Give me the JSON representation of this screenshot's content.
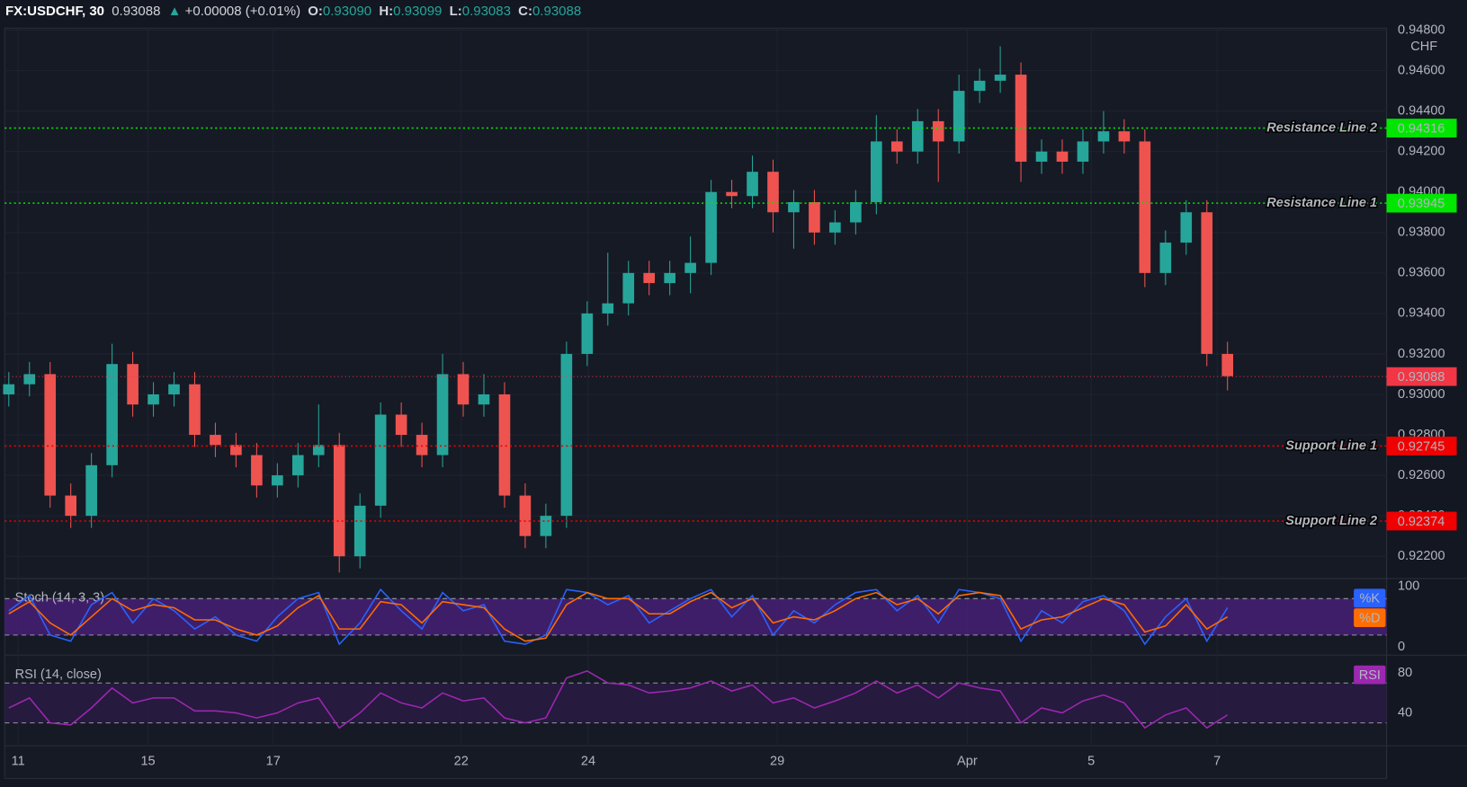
{
  "header": {
    "symbol": "FX:USDCHF, 30",
    "change": "+0.00008 (+0.01%)",
    "open_label": "O:",
    "open": "0.93090",
    "high_label": "H:",
    "high": "0.93099",
    "low_label": "L:",
    "low": "0.93083",
    "close_label": "C:",
    "close": "0.93088"
  },
  "chart_data": [
    {
      "type": "candlestick",
      "currency": "CHF",
      "open": [
        0.93,
        0.9305,
        0.931,
        0.925,
        0.924,
        0.9265,
        0.9315,
        0.9295,
        0.93,
        0.9305,
        0.928,
        0.9275,
        0.927,
        0.9255,
        0.926,
        0.927,
        0.9275,
        0.922,
        0.9245,
        0.929,
        0.928,
        0.927,
        0.931,
        0.9295,
        0.93,
        0.925,
        0.923,
        0.924,
        0.932,
        0.934,
        0.9345,
        0.936,
        0.9355,
        0.936,
        0.9365,
        0.94,
        0.9398,
        0.941,
        0.939,
        0.9395,
        0.938,
        0.9385,
        0.9395,
        0.9425,
        0.942,
        0.9435,
        0.9425,
        0.945,
        0.9455,
        0.9458,
        0.9415,
        0.942,
        0.9415,
        0.9425,
        0.943,
        0.9425,
        0.936,
        0.9375,
        0.939,
        0.932
      ],
      "high": [
        0.9311,
        0.9316,
        0.9316,
        0.9256,
        0.9271,
        0.9325,
        0.9321,
        0.9306,
        0.9311,
        0.9311,
        0.9286,
        0.9281,
        0.9276,
        0.9266,
        0.9276,
        0.9295,
        0.9281,
        0.9251,
        0.9296,
        0.9296,
        0.9286,
        0.932,
        0.9316,
        0.931,
        0.9306,
        0.9256,
        0.9246,
        0.9326,
        0.9346,
        0.937,
        0.9366,
        0.9366,
        0.9366,
        0.9378,
        0.9406,
        0.9406,
        0.9418,
        0.9416,
        0.9401,
        0.9401,
        0.9391,
        0.9401,
        0.9438,
        0.9431,
        0.9441,
        0.9441,
        0.9458,
        0.9461,
        0.9472,
        0.9464,
        0.9426,
        0.9426,
        0.9431,
        0.944,
        0.9436,
        0.9431,
        0.9381,
        0.9396,
        0.9396,
        0.9326
      ],
      "low": [
        0.9294,
        0.9299,
        0.9244,
        0.9234,
        0.9234,
        0.9259,
        0.9289,
        0.9289,
        0.9294,
        0.9274,
        0.9269,
        0.9264,
        0.9249,
        0.9249,
        0.9254,
        0.9264,
        0.9212,
        0.9214,
        0.9239,
        0.9274,
        0.9264,
        0.9264,
        0.9289,
        0.9289,
        0.9244,
        0.9224,
        0.9224,
        0.9234,
        0.9314,
        0.9334,
        0.9339,
        0.9349,
        0.9349,
        0.935,
        0.9359,
        0.9392,
        0.9392,
        0.938,
        0.9372,
        0.9374,
        0.9374,
        0.9379,
        0.9389,
        0.9414,
        0.9414,
        0.9405,
        0.9419,
        0.9444,
        0.9449,
        0.9405,
        0.9409,
        0.9409,
        0.9409,
        0.9419,
        0.9419,
        0.9353,
        0.9354,
        0.9369,
        0.9314,
        0.9302
      ],
      "close": [
        0.9305,
        0.931,
        0.925,
        0.924,
        0.9265,
        0.9315,
        0.9295,
        0.93,
        0.9305,
        0.928,
        0.9275,
        0.927,
        0.9255,
        0.926,
        0.927,
        0.9275,
        0.922,
        0.9245,
        0.929,
        0.928,
        0.927,
        0.931,
        0.9295,
        0.93,
        0.925,
        0.923,
        0.924,
        0.932,
        0.934,
        0.9345,
        0.936,
        0.9355,
        0.936,
        0.9365,
        0.94,
        0.9398,
        0.941,
        0.939,
        0.9395,
        0.938,
        0.9385,
        0.9395,
        0.9425,
        0.942,
        0.9435,
        0.9425,
        0.945,
        0.9455,
        0.9458,
        0.9415,
        0.942,
        0.9415,
        0.9425,
        0.943,
        0.9425,
        0.936,
        0.9375,
        0.939,
        0.932,
        0.9309
      ],
      "up_color": "#26a69a",
      "down_color": "#ef5350",
      "xlim": [
        -0.2,
        66.7
      ],
      "ylim": [
        0.9209,
        0.9481
      ],
      "yticks": [
        {
          "value": 0.922,
          "label": "0.92200"
        },
        {
          "value": 0.924,
          "label": "0.92400"
        },
        {
          "value": 0.926,
          "label": "0.92600"
        },
        {
          "value": 0.928,
          "label": "0.92800"
        },
        {
          "value": 0.93,
          "label": "0.93000"
        },
        {
          "value": 0.932,
          "label": "0.93200"
        },
        {
          "value": 0.934,
          "label": "0.93400"
        },
        {
          "value": 0.936,
          "label": "0.93600"
        },
        {
          "value": 0.938,
          "label": "0.93800"
        },
        {
          "value": 0.94,
          "label": "0.94000"
        },
        {
          "value": 0.942,
          "label": "0.94200"
        },
        {
          "value": 0.944,
          "label": "0.94400"
        },
        {
          "value": 0.946,
          "label": "0.94600"
        },
        {
          "value": 0.948,
          "label": "0.94800"
        }
      ],
      "xticks": [
        {
          "value": 0.45,
          "label": "11"
        },
        {
          "value": 6.74,
          "label": "15"
        },
        {
          "value": 12.8,
          "label": "17"
        },
        {
          "value": 21.9,
          "label": "22"
        },
        {
          "value": 28.05,
          "label": "24"
        },
        {
          "value": 37.2,
          "label": "29"
        },
        {
          "value": 46.4,
          "label": "Apr"
        },
        {
          "value": 52.4,
          "label": "5"
        },
        {
          "value": 58.5,
          "label": "7"
        }
      ],
      "grid": true,
      "levels": [
        {
          "name": "Resistance Line 2",
          "value": 0.94316,
          "color": "#00e600",
          "text_color": "#0b0e14"
        },
        {
          "name": "Resistance Line 1",
          "value": 0.93945,
          "color": "#00e600",
          "text_color": "#0b0e14"
        },
        {
          "name": "Support Line 1",
          "value": 0.92745,
          "color": "#f00000",
          "text_color": "#ffffff"
        },
        {
          "name": "Support Line 2",
          "value": 0.92374,
          "color": "#f00000",
          "text_color": "#ffffff"
        }
      ],
      "price_line": {
        "value": 0.93088,
        "color": "#f23645",
        "text_color": "#ffffff"
      }
    },
    {
      "type": "line",
      "title": "Stoch (14, 3, 3)",
      "ylim": [
        -10,
        110
      ],
      "yticks": [
        0,
        100
      ],
      "bands": [
        20,
        80
      ],
      "band_color": "#4a1f7a",
      "series": [
        {
          "name": "%K",
          "color": "#2962ff",
          "values": [
            60,
            85,
            20,
            10,
            70,
            90,
            40,
            80,
            60,
            30,
            50,
            20,
            10,
            50,
            80,
            90,
            5,
            40,
            95,
            60,
            30,
            90,
            60,
            70,
            10,
            5,
            20,
            95,
            90,
            70,
            85,
            40,
            60,
            80,
            95,
            50,
            85,
            20,
            60,
            40,
            70,
            90,
            95,
            60,
            85,
            40,
            95,
            90,
            80,
            10,
            60,
            40,
            75,
            85,
            60,
            5,
            50,
            80,
            10,
            65
          ]
        },
        {
          "name": "%D",
          "color": "#ff6d00",
          "values": [
            55,
            75,
            40,
            20,
            50,
            80,
            60,
            70,
            65,
            45,
            45,
            30,
            20,
            35,
            65,
            85,
            30,
            30,
            75,
            70,
            40,
            75,
            70,
            65,
            30,
            10,
            15,
            70,
            90,
            80,
            80,
            55,
            55,
            75,
            90,
            65,
            80,
            40,
            50,
            45,
            60,
            80,
            90,
            70,
            80,
            55,
            85,
            90,
            85,
            30,
            45,
            50,
            65,
            80,
            70,
            25,
            35,
            70,
            30,
            50
          ]
        }
      ]
    },
    {
      "type": "line",
      "title": "RSI (14, close)",
      "ylim": [
        8,
        96
      ],
      "yticks": [
        40,
        80
      ],
      "bands": [
        30,
        70
      ],
      "band_color": "#2a1a45",
      "series": [
        {
          "name": "RSI",
          "color": "#9c27b0",
          "values": [
            45,
            55,
            30,
            28,
            45,
            65,
            50,
            55,
            55,
            42,
            42,
            40,
            35,
            40,
            50,
            55,
            25,
            40,
            60,
            50,
            45,
            60,
            52,
            55,
            35,
            30,
            35,
            75,
            82,
            70,
            68,
            60,
            62,
            65,
            72,
            62,
            68,
            50,
            55,
            45,
            52,
            60,
            72,
            60,
            68,
            55,
            70,
            65,
            62,
            30,
            45,
            40,
            52,
            58,
            50,
            25,
            38,
            45,
            25,
            38
          ]
        }
      ]
    }
  ]
}
